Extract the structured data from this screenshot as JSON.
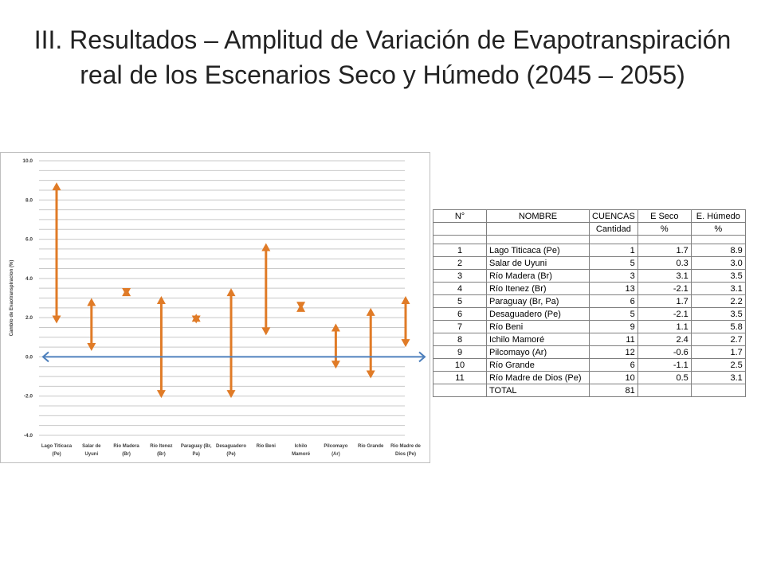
{
  "title": "III. Resultados – Amplitud de Variación de Evapotranspiración real de los Escenarios Seco y Húmedo (2045 – 2055)",
  "colors": {
    "arrow": "#e07b27",
    "zero_line": "#4f81bd",
    "grid": "#c8c8c8"
  },
  "chart_data": {
    "type": "range-arrow",
    "ylabel": "Cambio de Evaotranspiracion (%)",
    "ylim": [
      -4.0,
      10.0
    ],
    "yticks": [
      "10.0",
      "8.0",
      "6.0",
      "4.0",
      "2.0",
      "0.0",
      "-2.0",
      "-4.0"
    ],
    "grid": true,
    "categories": [
      [
        "Lago Titicaca",
        "(Pe)"
      ],
      [
        "Salar de",
        "Uyuni"
      ],
      [
        "Rio Madera",
        "(Br)"
      ],
      [
        "Rio Itenez",
        "(Br)"
      ],
      [
        "Paraguay (Br,",
        "Pa)"
      ],
      [
        "Desaguadero",
        "(Pe)"
      ],
      [
        "Rio Beni",
        ""
      ],
      [
        "Ichilo",
        "Mamoré"
      ],
      [
        "Pilcomayo",
        "(Ar)"
      ],
      [
        "Rio Grande",
        ""
      ],
      [
        "Rio Madre de",
        "Dios (Pe)"
      ]
    ],
    "series": [
      {
        "name": "E Seco",
        "values": [
          1.7,
          0.3,
          3.1,
          -2.1,
          1.7,
          -2.1,
          1.1,
          2.4,
          -0.6,
          -1.1,
          0.5
        ]
      },
      {
        "name": "E. Húmedo",
        "values": [
          8.9,
          3.0,
          3.5,
          3.1,
          2.2,
          3.5,
          5.8,
          2.7,
          1.7,
          2.5,
          3.1
        ]
      }
    ]
  },
  "table": {
    "headers": [
      "N°",
      "NOMBRE",
      "CUENCAS",
      "E Seco",
      "E. Húmedo"
    ],
    "subheaders": [
      "",
      "",
      "Cantidad",
      "%",
      "%"
    ],
    "rows": [
      [
        "1",
        "Lago Titicaca (Pe)",
        "1",
        "1.7",
        "8.9"
      ],
      [
        "2",
        "Salar de Uyuni",
        "5",
        "0.3",
        "3.0"
      ],
      [
        "3",
        "Río Madera (Br)",
        "3",
        "3.1",
        "3.5"
      ],
      [
        "4",
        "Río Itenez (Br)",
        "13",
        "-2.1",
        "3.1"
      ],
      [
        "5",
        "Paraguay (Br, Pa)",
        "6",
        "1.7",
        "2.2"
      ],
      [
        "6",
        "Desaguadero (Pe)",
        "5",
        "-2.1",
        "3.5"
      ],
      [
        "7",
        "Río Beni",
        "9",
        "1.1",
        "5.8"
      ],
      [
        "8",
        "Ichilo Mamoré",
        "11",
        "2.4",
        "2.7"
      ],
      [
        "9",
        "Pilcomayo (Ar)",
        "12",
        "-0.6",
        "1.7"
      ],
      [
        "10",
        "Río Grande",
        "6",
        "-1.1",
        "2.5"
      ],
      [
        "11",
        "Río Madre de Dios (Pe)",
        "10",
        "0.5",
        "3.1"
      ]
    ],
    "total_label": "TOTAL",
    "total_value": "81"
  }
}
